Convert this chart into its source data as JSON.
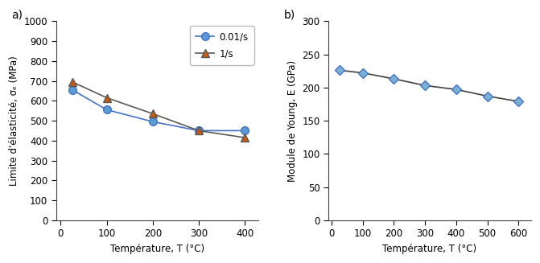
{
  "panel_a": {
    "label": "a)",
    "series": [
      {
        "label": "0.01/s",
        "x": [
          25,
          100,
          200,
          300,
          400
        ],
        "y": [
          655,
          555,
          495,
          450,
          450
        ],
        "color": "#4472C4",
        "marker": "o",
        "markersize": 7,
        "markerfacecolor": "#5B9BD5"
      },
      {
        "label": "1/s",
        "x": [
          25,
          100,
          200,
          300,
          400
        ],
        "y": [
          695,
          615,
          535,
          450,
          415
        ],
        "color": "#595959",
        "marker": "^",
        "markersize": 7,
        "markerfacecolor": "#C55A11"
      }
    ],
    "xlabel": "Température, T (°C)",
    "ylabel": "Limite d'élasticité, σₑ (MPa)",
    "xlim": [
      -10,
      430
    ],
    "ylim": [
      0,
      1000
    ],
    "xticks": [
      0,
      100,
      200,
      300,
      400
    ],
    "yticks": [
      0,
      100,
      200,
      300,
      400,
      500,
      600,
      700,
      800,
      900,
      1000
    ]
  },
  "panel_b": {
    "label": "b)",
    "series": [
      {
        "label": "E",
        "x": [
          25,
          100,
          200,
          300,
          400,
          500,
          600
        ],
        "y": [
          226,
          222,
          213,
          203,
          197,
          187,
          179
        ],
        "color": "#404040",
        "marker": "D",
        "markersize": 6,
        "markerfacecolor": "#7ab0d4",
        "markeredgecolor": "#4472C4"
      }
    ],
    "xlabel": "Température, T (°C)",
    "ylabel": "Module de Young, E (GPa)",
    "xlim": [
      -10,
      640
    ],
    "ylim": [
      0,
      300
    ],
    "xticks": [
      0,
      100,
      200,
      300,
      400,
      500,
      600
    ],
    "yticks": [
      0,
      50,
      100,
      150,
      200,
      250,
      300
    ]
  },
  "background_color": "#ffffff",
  "fontsize_label": 8.5,
  "fontsize_tick": 8.5,
  "fontsize_panel": 10
}
